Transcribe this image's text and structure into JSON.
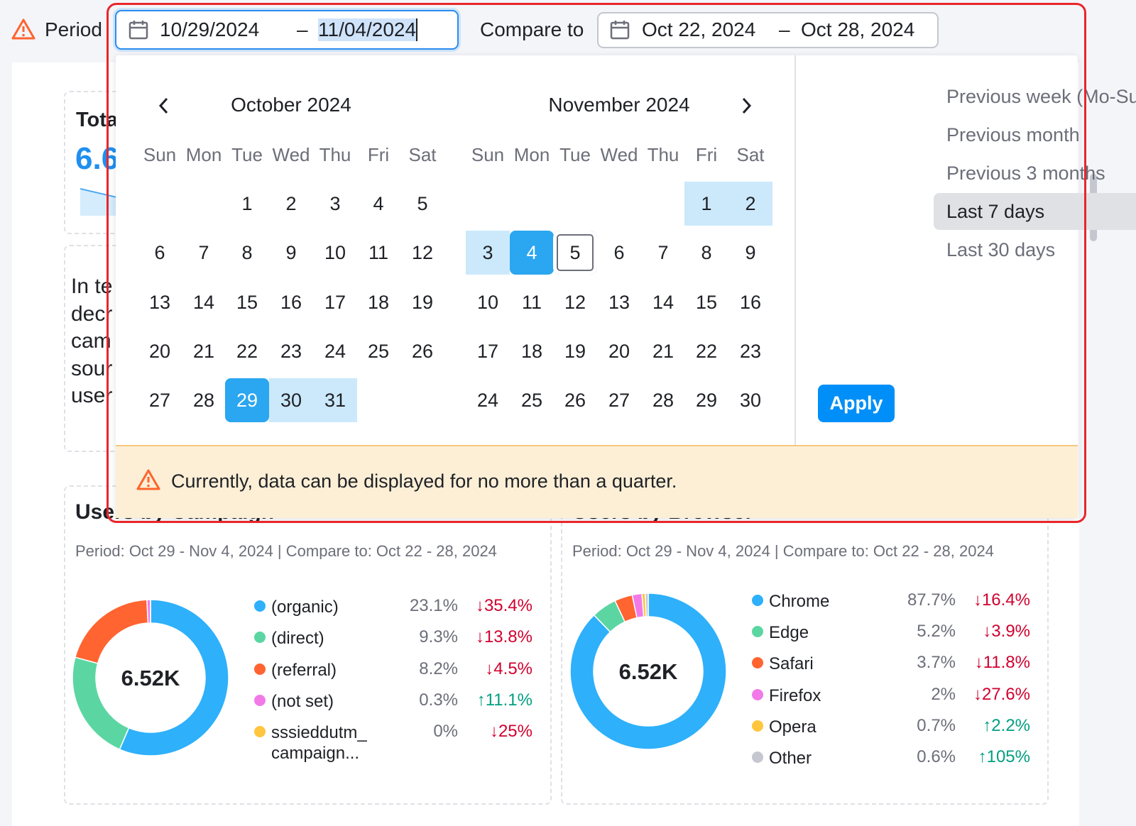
{
  "header": {
    "period_label": "Period",
    "start": "10/29/2024",
    "separator": "–",
    "end": "11/04/2024",
    "compare_label": "Compare to",
    "compare_start": "Oct 22, 2024",
    "compare_separator": "–",
    "compare_end": "Oct 28, 2024"
  },
  "calendar": {
    "months": [
      {
        "title": "October 2024",
        "weekdays": [
          "Sun",
          "Mon",
          "Tue",
          "Wed",
          "Thu",
          "Fri",
          "Sat"
        ],
        "weeks": [
          [
            null,
            null,
            "1",
            "2",
            "3",
            "4",
            "5"
          ],
          [
            "6",
            "7",
            "8",
            "9",
            "10",
            "11",
            "12"
          ],
          [
            "13",
            "14",
            "15",
            "16",
            "17",
            "18",
            "19"
          ],
          [
            "20",
            "21",
            "22",
            "23",
            "24",
            "25",
            "26"
          ],
          [
            "27",
            "28",
            "29",
            "30",
            "31",
            null,
            null
          ]
        ],
        "selected": [
          "29"
        ],
        "in_range": [
          "30",
          "31"
        ]
      },
      {
        "title": "November 2024",
        "weekdays": [
          "Sun",
          "Mon",
          "Tue",
          "Wed",
          "Thu",
          "Fri",
          "Sat"
        ],
        "weeks": [
          [
            null,
            null,
            null,
            null,
            null,
            "1",
            "2"
          ],
          [
            "3",
            "4",
            "5",
            "6",
            "7",
            "8",
            "9"
          ],
          [
            "10",
            "11",
            "12",
            "13",
            "14",
            "15",
            "16"
          ],
          [
            "17",
            "18",
            "19",
            "20",
            "21",
            "22",
            "23"
          ],
          [
            "24",
            "25",
            "26",
            "27",
            "28",
            "29",
            "30"
          ]
        ],
        "selected": [
          "4"
        ],
        "in_range": [
          "1",
          "2",
          "3"
        ],
        "today": "5"
      }
    ]
  },
  "presets": [
    {
      "label": "Previous week (Mo-Su)",
      "active": false
    },
    {
      "label": "Previous month",
      "active": false
    },
    {
      "label": "Previous 3 months",
      "active": false
    },
    {
      "label": "Last 7 days",
      "active": true
    },
    {
      "label": "Last 30 days",
      "active": false
    }
  ],
  "apply": "Apply",
  "notice": "Currently, data can be displayed for no more than a quarter.",
  "background": {
    "total_title": "Tota",
    "total_value": "6.6",
    "text_lines": [
      "In te",
      "decr",
      "cam",
      "sour",
      "user"
    ]
  },
  "chart_data": [
    {
      "type": "donut",
      "title": "Users by Campaign",
      "subtitle": "Period: Oct 29 - Nov 4, 2024 | Compare to: Oct 22 - 28, 2024",
      "center_label": "6.52K",
      "categories": [
        "(organic)",
        "(direct)",
        "(referral)",
        "(not set)",
        "sssieddutm_ campaign..."
      ],
      "colors": [
        "#2eb0fb",
        "#5bd6a2",
        "#ff6431",
        "#f27ae8",
        "#ffc53d"
      ],
      "values": [
        23.1,
        9.3,
        8.2,
        0.3,
        0
      ],
      "value_labels": [
        "23.1%",
        "9.3%",
        "8.2%",
        "0.3%",
        "0%"
      ],
      "changes": [
        -35.4,
        -13.8,
        -4.5,
        11.1,
        -25
      ],
      "change_labels": [
        "↓35.4%",
        "↓13.8%",
        "↓4.5%",
        "↑11.1%",
        "↓25%"
      ]
    },
    {
      "type": "donut",
      "title": "Users by Browser",
      "subtitle": "Period: Oct 29 - Nov 4, 2024 | Compare to: Oct 22 - 28, 2024",
      "center_label": "6.52K",
      "categories": [
        "Chrome",
        "Edge",
        "Safari",
        "Firefox",
        "Opera",
        "Other"
      ],
      "colors": [
        "#2eb0fb",
        "#5bd6a2",
        "#ff6431",
        "#f27ae8",
        "#ffc53d",
        "#c4c7cf"
      ],
      "values": [
        87.7,
        5.2,
        3.7,
        2,
        0.7,
        0.6
      ],
      "value_labels": [
        "87.7%",
        "5.2%",
        "3.7%",
        "2%",
        "0.7%",
        "0.6%"
      ],
      "changes": [
        -16.4,
        -3.9,
        -11.8,
        -27.6,
        2.2,
        105
      ],
      "change_labels": [
        "↓16.4%",
        "↓3.9%",
        "↓11.8%",
        "↓27.6%",
        "↑2.2%",
        "↑105%"
      ]
    }
  ]
}
